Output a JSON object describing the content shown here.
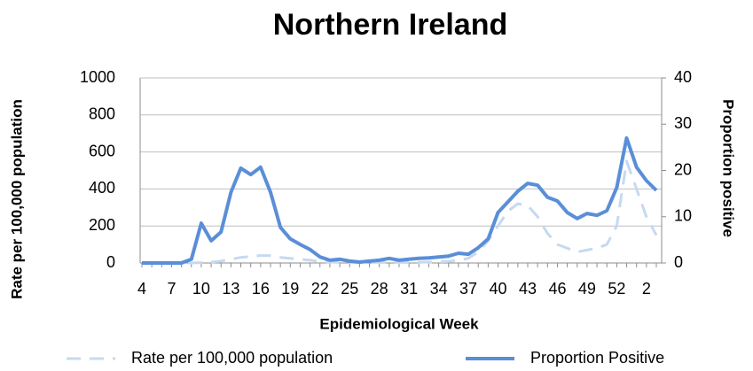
{
  "chart_data": {
    "type": "line",
    "title": "Northern Ireland",
    "x_label": "Epidemiological Week",
    "y_label": "Rate per 100,000 population",
    "y2_label": "Proportion positive",
    "categories": [
      "4",
      null,
      null,
      "7",
      null,
      null,
      "10",
      null,
      null,
      "13",
      null,
      null,
      "16",
      null,
      null,
      "19",
      null,
      null,
      "22",
      null,
      null,
      "25",
      null,
      null,
      "28",
      null,
      null,
      "31",
      null,
      null,
      "34",
      null,
      null,
      "37",
      null,
      null,
      "40",
      null,
      null,
      "43",
      null,
      null,
      "46",
      null,
      null,
      "49",
      null,
      null,
      "52",
      null,
      null,
      "2",
      null
    ],
    "ylim": [
      0,
      1000
    ],
    "yticks": [
      0,
      200,
      400,
      600,
      800,
      1000
    ],
    "y2lim": [
      0,
      40
    ],
    "y2ticks": [
      0,
      10,
      20,
      30,
      40
    ],
    "grid": true,
    "legend": "bottom",
    "series": [
      {
        "name": "Rate per 100,000 population",
        "color": "#c6d9f1",
        "dashed": true,
        "values": [
          0,
          0,
          0,
          0,
          0,
          0,
          2,
          5,
          10,
          20,
          30,
          35,
          40,
          40,
          30,
          25,
          20,
          15,
          8,
          5,
          3,
          3,
          3,
          3,
          3,
          3,
          3,
          3,
          4,
          5,
          6,
          8,
          15,
          25,
          60,
          120,
          200,
          280,
          320,
          310,
          250,
          160,
          100,
          80,
          60,
          70,
          80,
          100,
          200,
          550,
          400,
          250,
          150
        ]
      },
      {
        "name": "Proportion Positive",
        "color": "#5a8ed8",
        "axis": "y2",
        "values": [
          0,
          0,
          0,
          0,
          0,
          0.8,
          8.6,
          4.8,
          6.7,
          15.3,
          20.5,
          19.1,
          20.7,
          15.3,
          7.7,
          5.2,
          4,
          2.9,
          1.3,
          0.6,
          0.8,
          0.4,
          0.2,
          0.4,
          0.6,
          1.0,
          0.6,
          0.8,
          1.0,
          1.1,
          1.3,
          1.5,
          2.1,
          1.9,
          3.3,
          5.2,
          10.9,
          13.2,
          15.5,
          17.2,
          16.8,
          14.2,
          13.4,
          10.9,
          9.6,
          10.7,
          10.3,
          11.3,
          16.3,
          27,
          20.7,
          17.8,
          15.7
        ]
      }
    ]
  }
}
